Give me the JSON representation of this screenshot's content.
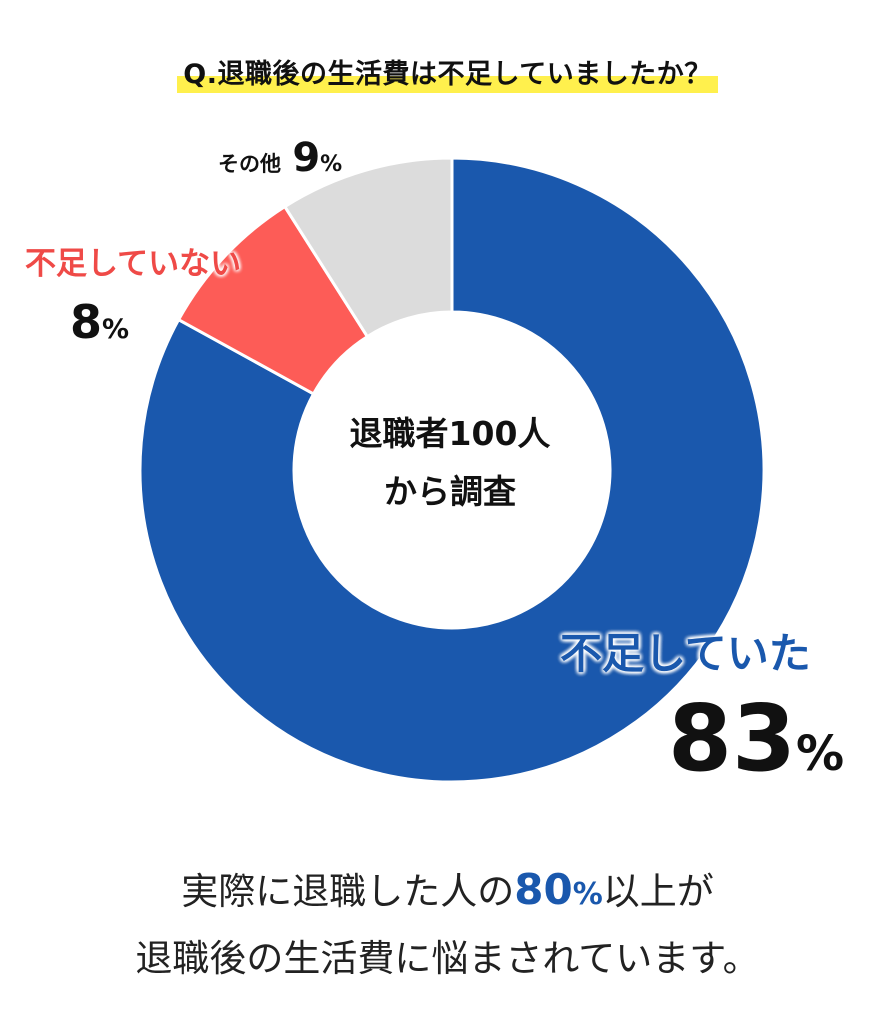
{
  "title": "Q.退職後の生活費は不足していましたか？",
  "center": {
    "line1": "退職者100人",
    "line2": "から調査"
  },
  "labels": {
    "lacked": {
      "text": "不足していた",
      "value": "83",
      "unit": "%"
    },
    "not_lacked": {
      "text": "不足していない",
      "value": "8",
      "unit": "%"
    },
    "other": {
      "text": "その他",
      "value": "9",
      "unit": "%"
    }
  },
  "footer": {
    "line1_pre": "実際に退職した人の",
    "line1_value": "80",
    "line1_unit": "%",
    "line1_post": "以上が",
    "line2": "退職後の生活費に悩まされています。"
  },
  "colors": {
    "lacked": "#1a58ad",
    "not_lacked": "#fd5c57",
    "other": "#dcdcdc",
    "highlight": "#fff04d"
  },
  "chart_data": {
    "type": "pie",
    "title": "Q.退職後の生活費は不足していましたか？",
    "categories": [
      "不足していた",
      "不足していない",
      "その他"
    ],
    "values": [
      83,
      8,
      9
    ],
    "unit": "%",
    "donut": true,
    "start": "top, clockwise"
  }
}
